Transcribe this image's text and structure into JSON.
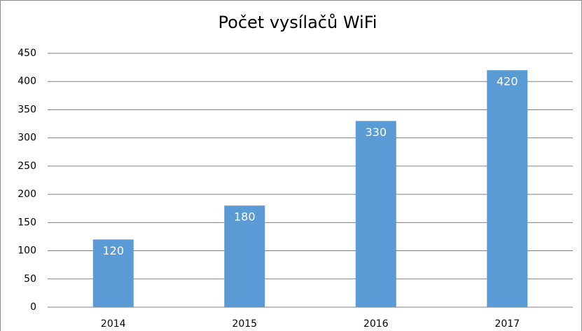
{
  "chart_data": {
    "type": "bar",
    "title": "Počet vysílačů WiFi",
    "categories": [
      "2014",
      "2015",
      "2016",
      "2017"
    ],
    "values": [
      120,
      180,
      330,
      420
    ],
    "color": "#5b9bd5",
    "ylim": [
      0,
      450
    ],
    "yticks": [
      0,
      50,
      100,
      150,
      200,
      250,
      300,
      350,
      400,
      450
    ],
    "grid": true
  }
}
